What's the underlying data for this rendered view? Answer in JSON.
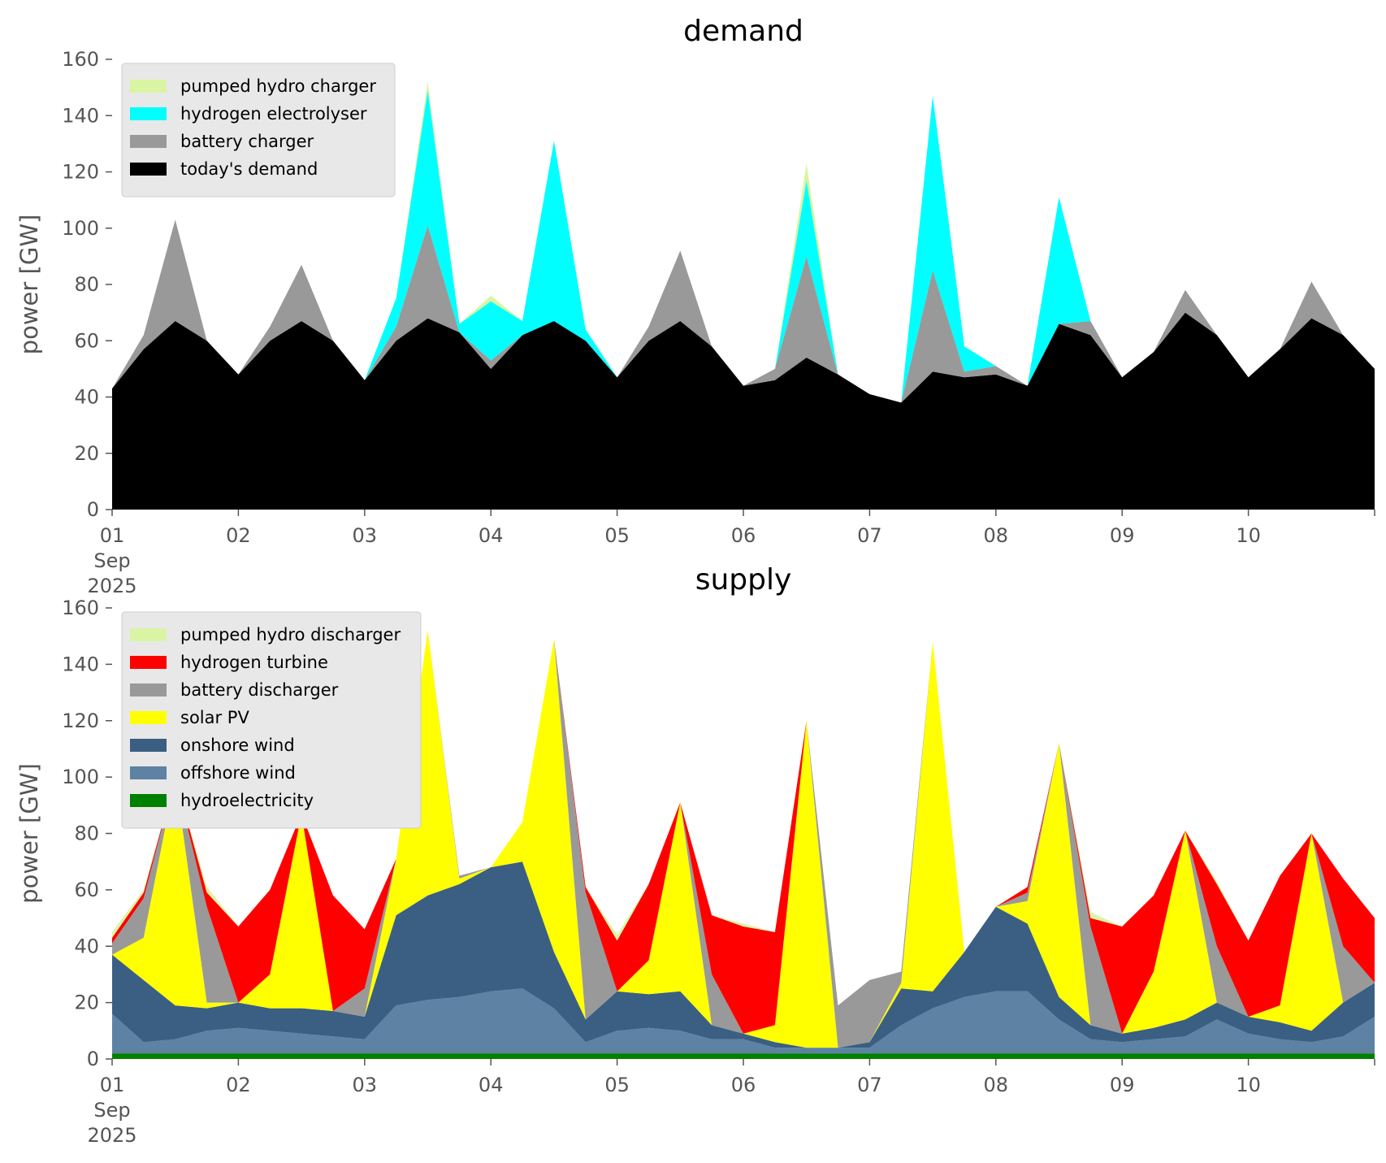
{
  "chart_data": [
    {
      "type": "area",
      "stacked": true,
      "title": "demand",
      "ylabel": "power [GW]",
      "xlabel": "",
      "ylim": [
        0,
        160
      ],
      "yticks": [
        0,
        20,
        40,
        60,
        80,
        100,
        120,
        140,
        160
      ],
      "x_range": [
        "2025-09-01",
        "2025-09-11"
      ],
      "x_ticks": [
        {
          "date": "2025-09-01",
          "lines": [
            "01",
            "Sep",
            "2025"
          ]
        },
        {
          "date": "2025-09-02",
          "lines": [
            "02"
          ]
        },
        {
          "date": "2025-09-03",
          "lines": [
            "03"
          ]
        },
        {
          "date": "2025-09-04",
          "lines": [
            "04"
          ]
        },
        {
          "date": "2025-09-05",
          "lines": [
            "05"
          ]
        },
        {
          "date": "2025-09-06",
          "lines": [
            "06"
          ]
        },
        {
          "date": "2025-09-07",
          "lines": [
            "07"
          ]
        },
        {
          "date": "2025-09-08",
          "lines": [
            "08"
          ]
        },
        {
          "date": "2025-09-09",
          "lines": [
            "09"
          ]
        },
        {
          "date": "2025-09-10",
          "lines": [
            "10"
          ]
        }
      ],
      "legend_position": "top-left",
      "grid": false,
      "x": [
        "09-01 00h",
        "09-01 06h",
        "09-01 12h",
        "09-01 18h",
        "09-02 00h",
        "09-02 06h",
        "09-02 12h",
        "09-02 18h",
        "09-03 00h",
        "09-03 06h",
        "09-03 12h",
        "09-03 18h",
        "09-04 00h",
        "09-04 06h",
        "09-04 12h",
        "09-04 18h",
        "09-05 00h",
        "09-05 06h",
        "09-05 12h",
        "09-05 18h",
        "09-06 00h",
        "09-06 06h",
        "09-06 12h",
        "09-06 18h",
        "09-07 00h",
        "09-07 06h",
        "09-07 12h",
        "09-07 18h",
        "09-08 00h",
        "09-08 06h",
        "09-08 12h",
        "09-08 18h",
        "09-09 00h",
        "09-09 06h",
        "09-09 12h",
        "09-09 18h",
        "09-10 00h",
        "09-10 06h",
        "09-10 12h",
        "09-10 18h",
        "09-11 00h"
      ],
      "series": [
        {
          "name": "today's demand",
          "color": "#000000",
          "values": [
            43,
            57,
            67,
            60,
            48,
            60,
            67,
            60,
            46,
            60,
            68,
            63,
            50,
            62,
            67,
            60,
            47,
            60,
            67,
            58,
            44,
            46,
            54,
            48,
            41,
            38,
            49,
            47,
            48,
            44,
            66,
            62,
            47,
            56,
            70,
            62,
            47,
            57,
            68,
            62,
            50
          ]
        },
        {
          "name": "battery charger",
          "color": "#999999",
          "values": [
            0,
            5,
            36,
            0,
            0,
            5,
            20,
            0,
            0,
            5,
            33,
            0,
            3,
            0,
            0,
            0,
            0,
            5,
            25,
            0,
            0,
            4,
            36,
            0,
            0,
            0,
            36,
            2,
            3,
            0,
            0,
            5,
            0,
            0,
            8,
            0,
            0,
            0,
            13,
            0,
            0
          ]
        },
        {
          "name": "hydrogen electrolyser",
          "color": "#00ffff",
          "values": [
            0,
            0,
            0,
            0,
            0,
            0,
            0,
            0,
            0,
            10,
            48,
            3,
            21,
            5,
            64,
            4,
            0,
            0,
            0,
            0,
            0,
            0,
            27,
            0,
            0,
            0,
            62,
            9,
            0,
            0,
            45,
            0,
            0,
            0,
            0,
            0,
            0,
            0,
            0,
            0,
            0
          ]
        },
        {
          "name": "pumped hydro charger",
          "color": "#d9f5a3",
          "values": [
            0,
            0,
            0,
            0,
            0,
            0,
            0,
            0,
            0,
            0,
            3,
            0,
            2,
            0,
            0,
            0,
            0,
            0,
            0,
            0,
            0,
            0,
            6,
            0,
            0,
            0,
            0,
            0,
            0,
            0,
            0,
            0,
            0,
            0,
            0,
            0,
            0,
            0,
            0,
            0,
            0
          ]
        }
      ]
    },
    {
      "type": "area",
      "stacked": true,
      "title": "supply",
      "ylabel": "power [GW]",
      "xlabel": "",
      "ylim": [
        0,
        160
      ],
      "yticks": [
        0,
        20,
        40,
        60,
        80,
        100,
        120,
        140,
        160
      ],
      "x_range": [
        "2025-09-01",
        "2025-09-11"
      ],
      "x_ticks": [
        {
          "date": "2025-09-01",
          "lines": [
            "01",
            "Sep",
            "2025"
          ]
        },
        {
          "date": "2025-09-02",
          "lines": [
            "02"
          ]
        },
        {
          "date": "2025-09-03",
          "lines": [
            "03"
          ]
        },
        {
          "date": "2025-09-04",
          "lines": [
            "04"
          ]
        },
        {
          "date": "2025-09-05",
          "lines": [
            "05"
          ]
        },
        {
          "date": "2025-09-06",
          "lines": [
            "06"
          ]
        },
        {
          "date": "2025-09-07",
          "lines": [
            "07"
          ]
        },
        {
          "date": "2025-09-08",
          "lines": [
            "08"
          ]
        },
        {
          "date": "2025-09-09",
          "lines": [
            "09"
          ]
        },
        {
          "date": "2025-09-10",
          "lines": [
            "10"
          ]
        }
      ],
      "legend_position": "top-left",
      "grid": false,
      "x": [
        "09-01 00h",
        "09-01 06h",
        "09-01 12h",
        "09-01 18h",
        "09-02 00h",
        "09-02 06h",
        "09-02 12h",
        "09-02 18h",
        "09-03 00h",
        "09-03 06h",
        "09-03 12h",
        "09-03 18h",
        "09-04 00h",
        "09-04 06h",
        "09-04 12h",
        "09-04 18h",
        "09-05 00h",
        "09-05 06h",
        "09-05 12h",
        "09-05 18h",
        "09-06 00h",
        "09-06 06h",
        "09-06 12h",
        "09-06 18h",
        "09-07 00h",
        "09-07 06h",
        "09-07 12h",
        "09-07 18h",
        "09-08 00h",
        "09-08 06h",
        "09-08 12h",
        "09-08 18h",
        "09-09 00h",
        "09-09 06h",
        "09-09 12h",
        "09-09 18h",
        "09-10 00h",
        "09-10 06h",
        "09-10 12h",
        "09-10 18h",
        "09-11 00h"
      ],
      "series": [
        {
          "name": "hydroelectricity",
          "color": "#008000",
          "values": [
            2,
            2,
            2,
            2,
            2,
            2,
            2,
            2,
            2,
            2,
            2,
            2,
            2,
            2,
            2,
            2,
            2,
            2,
            2,
            2,
            2,
            2,
            2,
            2,
            2,
            2,
            2,
            2,
            2,
            2,
            2,
            2,
            2,
            2,
            2,
            2,
            2,
            2,
            2,
            2,
            2
          ]
        },
        {
          "name": "offshore wind",
          "color": "#5d82a3",
          "values": [
            14,
            4,
            5,
            8,
            9,
            8,
            7,
            6,
            5,
            17,
            19,
            20,
            22,
            23,
            16,
            4,
            8,
            9,
            8,
            5,
            5,
            2,
            2,
            2,
            2,
            10,
            16,
            20,
            22,
            22,
            12,
            5,
            4,
            5,
            6,
            12,
            7,
            5,
            4,
            6,
            13
          ]
        },
        {
          "name": "onshore wind",
          "color": "#3a5f83",
          "values": [
            21,
            22,
            12,
            8,
            9,
            8,
            9,
            9,
            8,
            32,
            37,
            40,
            44,
            45,
            20,
            8,
            14,
            12,
            14,
            5,
            2,
            2,
            0,
            0,
            2,
            13,
            6,
            16,
            30,
            24,
            8,
            5,
            3,
            4,
            6,
            6,
            6,
            6,
            4,
            12,
            12
          ]
        },
        {
          "name": "solar PV",
          "color": "#ffff00",
          "values": [
            0,
            15,
            81,
            2,
            0,
            12,
            69,
            0,
            0,
            20,
            94,
            2,
            0,
            14,
            111,
            0,
            0,
            12,
            67,
            0,
            0,
            6,
            116,
            0,
            0,
            2,
            124,
            0,
            0,
            8,
            90,
            0,
            0,
            20,
            67,
            0,
            0,
            6,
            70,
            0,
            0
          ]
        },
        {
          "name": "battery discharger",
          "color": "#999999",
          "values": [
            4,
            14,
            0,
            34,
            0,
            0,
            0,
            0,
            10,
            0,
            0,
            1,
            0,
            0,
            0,
            45,
            0,
            0,
            0,
            18,
            0,
            0,
            0,
            15,
            22,
            4,
            0,
            0,
            0,
            3,
            0,
            35,
            0,
            0,
            0,
            20,
            0,
            0,
            0,
            20,
            0
          ]
        },
        {
          "name": "hydrogen turbine",
          "color": "#ff0000",
          "values": [
            2,
            2,
            0,
            5,
            27,
            30,
            0,
            41,
            21,
            0,
            0,
            0,
            0,
            0,
            0,
            2,
            18,
            27,
            0,
            21,
            38,
            33,
            0,
            0,
            0,
            0,
            0,
            0,
            0,
            2,
            0,
            3,
            38,
            27,
            0,
            22,
            27,
            46,
            0,
            24,
            23
          ]
        },
        {
          "name": "pumped hydro discharger",
          "color": "#d9f5a3",
          "values": [
            2,
            1,
            0,
            2,
            0,
            0,
            0,
            0,
            0,
            0,
            0,
            0,
            0,
            0,
            0,
            0,
            2,
            0,
            0,
            0,
            1,
            0,
            0,
            0,
            0,
            0,
            0,
            0,
            0,
            0,
            0,
            2,
            0,
            0,
            0,
            1,
            0,
            0,
            0,
            0,
            0
          ]
        }
      ]
    }
  ]
}
